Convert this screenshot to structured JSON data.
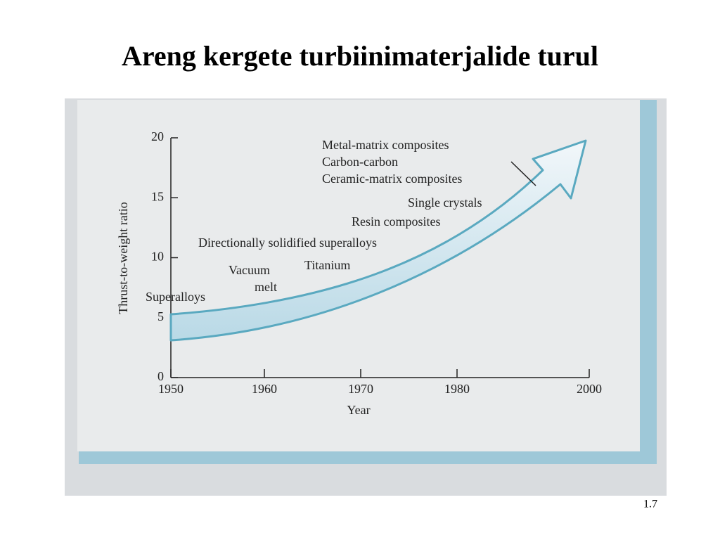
{
  "slide": {
    "title": "Areng kergete turbiinimaterjalide turul",
    "page_number": "1.7"
  },
  "chart_data": {
    "type": "arrow",
    "x_label": "Year",
    "y_label": "Thrust-to-weight ratio",
    "categories": [
      "1950",
      "1960",
      "1970",
      "1980",
      "2000"
    ],
    "ylim": [
      0,
      20
    ],
    "yticks": [
      0,
      5,
      10,
      15,
      20
    ],
    "color": "#5aa9c0",
    "annotations": [
      "Metal-matrix composites",
      "Carbon-carbon",
      "Ceramic-matrix composites",
      "Single crystals",
      "Resin composites",
      "Directionally solidified superalloys",
      "Vacuum",
      "melt",
      "Titanium",
      "Superalloys"
    ]
  }
}
